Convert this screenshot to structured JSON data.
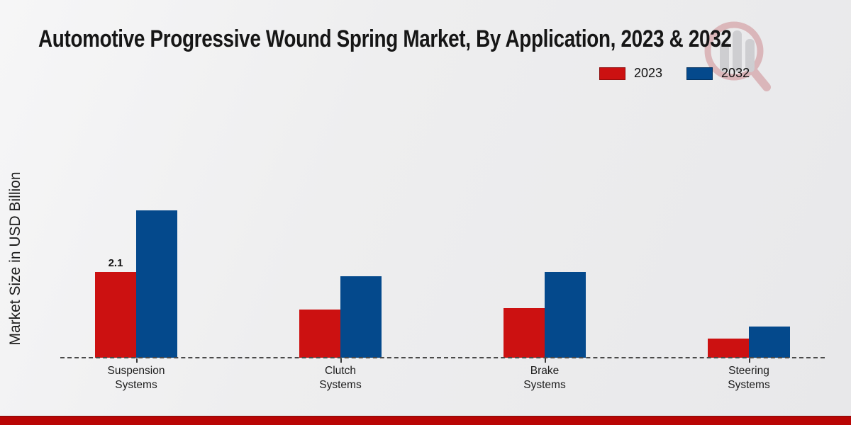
{
  "title": "Automotive Progressive Wound Spring Market, By Application, 2023 & 2032",
  "y_axis_label": "Market Size in USD Billion",
  "legend": {
    "items": [
      {
        "label": "2023",
        "color": "#cc1111"
      },
      {
        "label": "2032",
        "color": "#04498c"
      }
    ]
  },
  "watermark": {
    "icon": "magnifier-bar-chart-logo"
  },
  "colors": {
    "bar_2023": "#cc1111",
    "bar_2032": "#04498c",
    "footer_band": "#b90504",
    "background": "#ebebed",
    "baseline_dash": "#4a4a4a",
    "text": "#151515"
  },
  "chart_data": {
    "type": "bar",
    "title": "Automotive Progressive Wound Spring Market, By Application, 2023 & 2032",
    "categories": [
      "Suspension Systems",
      "Clutch Systems",
      "Brake Systems",
      "Steering Systems"
    ],
    "series": [
      {
        "name": "2023",
        "color": "#cc1111",
        "values": [
          2.1,
          1.18,
          1.22,
          0.47
        ]
      },
      {
        "name": "2032",
        "color": "#04498c",
        "values": [
          3.63,
          2.0,
          2.11,
          0.76
        ]
      }
    ],
    "annotations": [
      {
        "series": "2023",
        "category": "Suspension Systems",
        "text": "2.1"
      }
    ],
    "xlabel": "",
    "ylabel": "Market Size in USD Billion",
    "ylim": [
      0,
      4
    ],
    "grid": false,
    "legend_position": "top-right",
    "baseline_style": "dashed"
  }
}
